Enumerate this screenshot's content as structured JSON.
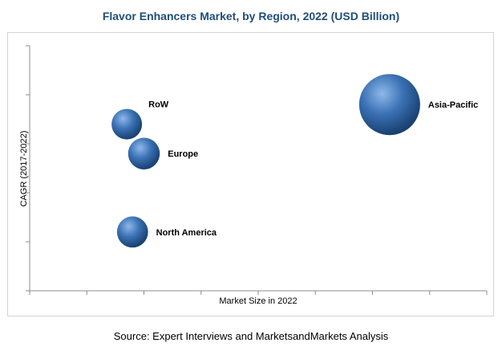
{
  "chart_data": {
    "type": "bubble",
    "title": "Flavor Enhancers Market, by Region, 2022 (USD Billion)",
    "xlabel": "Market Size in 2022",
    "ylabel": "CAGR (2017-2022)",
    "xlim": [
      0,
      8
    ],
    "ylim": [
      0,
      5
    ],
    "grid": false,
    "bubble_color": "#3b72b5",
    "series": [
      {
        "name": "Asia-Pacific",
        "x": 6.3,
        "y": 3.8,
        "size": 10
      },
      {
        "name": "RoW",
        "x": 1.7,
        "y": 3.4,
        "size": 2.5
      },
      {
        "name": "Europe",
        "x": 2.0,
        "y": 2.8,
        "size": 2.7
      },
      {
        "name": "North America",
        "x": 1.8,
        "y": 1.2,
        "size": 2.6
      }
    ]
  },
  "source": "Source: Expert Interviews and MarketsandMarkets Analysis"
}
